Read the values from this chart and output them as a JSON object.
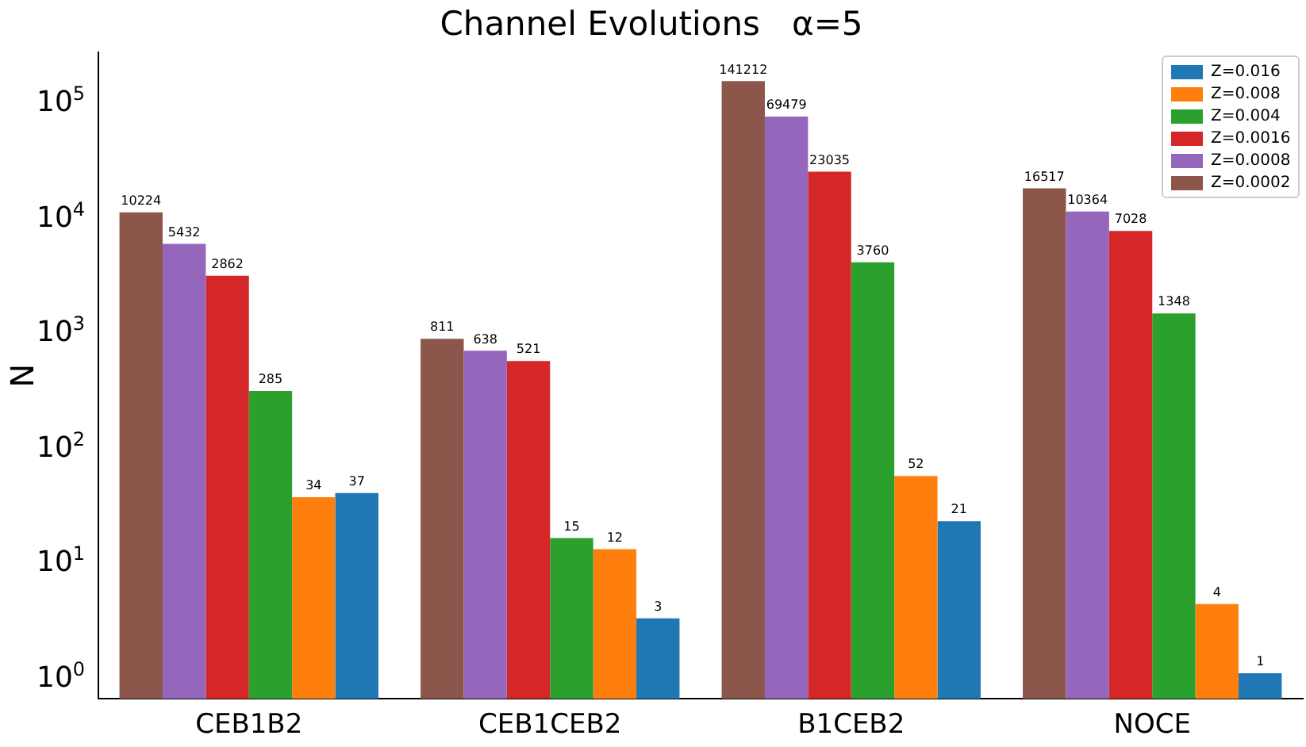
{
  "chart_data": {
    "type": "bar",
    "title": "Channel Evolutions   α=5",
    "ylabel": "N",
    "categories": [
      "CEB1B2",
      "CEB1CEB2",
      "B1CEB2",
      "NOCE"
    ],
    "series": [
      {
        "name": "Z=0.016",
        "color": "#1f77b4",
        "values": [
          37,
          3,
          21,
          1
        ]
      },
      {
        "name": "Z=0.008",
        "color": "#ff7f0e",
        "values": [
          34,
          12,
          52,
          4
        ]
      },
      {
        "name": "Z=0.004",
        "color": "#2ca02c",
        "values": [
          285,
          15,
          3760,
          1348
        ]
      },
      {
        "name": "Z=0.0016",
        "color": "#d62728",
        "values": [
          2862,
          521,
          23035,
          7028
        ]
      },
      {
        "name": "Z=0.0008",
        "color": "#9467bd",
        "values": [
          5432,
          638,
          69479,
          10364
        ]
      },
      {
        "name": "Z=0.0002",
        "color": "#8c564b",
        "values": [
          10224,
          811,
          141212,
          16517
        ]
      }
    ],
    "log": true,
    "ylim": [
      0.6,
      250000
    ],
    "yticks": [
      {
        "value": 1,
        "label": "10$^{0}$"
      },
      {
        "value": 10,
        "label": "10$^{1}$"
      },
      {
        "value": 100,
        "label": "10$^{2}$"
      },
      {
        "value": 1000,
        "label": "10$^{3}$"
      },
      {
        "value": 10000,
        "label": "10$^{4}$"
      },
      {
        "value": 100000,
        "label": "10$^{5}$"
      }
    ],
    "grid": false,
    "legend": "top right",
    "data_labels": true
  }
}
